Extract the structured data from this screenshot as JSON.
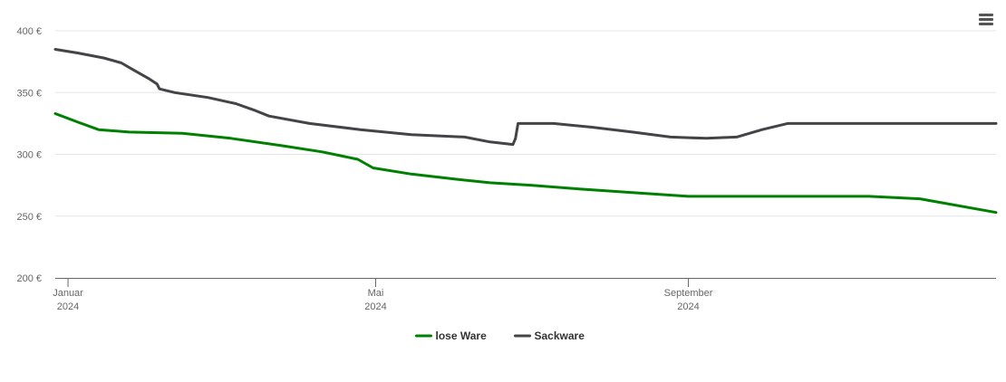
{
  "chart_data": {
    "type": "line",
    "title": "",
    "xlabel": "",
    "ylabel": "",
    "ylim": [
      200,
      400
    ],
    "y_ticks": [
      {
        "value": 400,
        "label": "400 €"
      },
      {
        "value": 350,
        "label": "350 €"
      },
      {
        "value": 300,
        "label": "300 €"
      },
      {
        "value": 250,
        "label": "250 €"
      },
      {
        "value": 200,
        "label": "200 €"
      }
    ],
    "x_range": [
      "2023-12-27",
      "2024-12-31"
    ],
    "x_ticks": [
      {
        "date": "2024-01-01",
        "line1": "Januar",
        "line2": "2024"
      },
      {
        "date": "2024-05-01",
        "line1": "Mai",
        "line2": "2024"
      },
      {
        "date": "2024-09-01",
        "line1": "September",
        "line2": "2024"
      }
    ],
    "grid": true,
    "legend_position": "bottom-center",
    "series": [
      {
        "name": "lose Ware",
        "color": "#008000",
        "points": [
          [
            "2023-12-27",
            333
          ],
          [
            "2024-01-05",
            326
          ],
          [
            "2024-01-13",
            320
          ],
          [
            "2024-01-25",
            318
          ],
          [
            "2024-02-15",
            317
          ],
          [
            "2024-03-05",
            313
          ],
          [
            "2024-03-25",
            307
          ],
          [
            "2024-04-10",
            302
          ],
          [
            "2024-04-24",
            296
          ],
          [
            "2024-04-30",
            289
          ],
          [
            "2024-05-15",
            284
          ],
          [
            "2024-06-01",
            280
          ],
          [
            "2024-06-15",
            277
          ],
          [
            "2024-07-01",
            275
          ],
          [
            "2024-07-20",
            272
          ],
          [
            "2024-08-10",
            269
          ],
          [
            "2024-09-01",
            266
          ],
          [
            "2024-09-20",
            266
          ],
          [
            "2024-10-20",
            266
          ],
          [
            "2024-11-11",
            266
          ],
          [
            "2024-12-01",
            264
          ],
          [
            "2024-12-31",
            253
          ]
        ]
      },
      {
        "name": "Sackware",
        "color": "#434348",
        "points": [
          [
            "2023-12-27",
            385
          ],
          [
            "2024-01-05",
            382
          ],
          [
            "2024-01-15",
            378
          ],
          [
            "2024-01-22",
            374
          ],
          [
            "2024-01-27",
            368
          ],
          [
            "2024-02-02",
            361
          ],
          [
            "2024-02-05",
            357
          ],
          [
            "2024-02-06",
            353
          ],
          [
            "2024-02-12",
            350
          ],
          [
            "2024-02-25",
            346
          ],
          [
            "2024-03-07",
            341
          ],
          [
            "2024-03-14",
            336
          ],
          [
            "2024-03-20",
            331
          ],
          [
            "2024-04-05",
            325
          ],
          [
            "2024-04-25",
            320
          ],
          [
            "2024-05-15",
            316
          ],
          [
            "2024-06-05",
            314
          ],
          [
            "2024-06-15",
            310
          ],
          [
            "2024-06-24",
            308
          ],
          [
            "2024-06-25",
            313
          ],
          [
            "2024-06-26",
            325
          ],
          [
            "2024-07-10",
            325
          ],
          [
            "2024-07-25",
            322
          ],
          [
            "2024-08-10",
            318
          ],
          [
            "2024-08-25",
            314
          ],
          [
            "2024-09-08",
            313
          ],
          [
            "2024-09-20",
            314
          ],
          [
            "2024-09-30",
            320
          ],
          [
            "2024-10-10",
            325
          ],
          [
            "2024-10-20",
            325
          ],
          [
            "2024-12-31",
            325
          ]
        ]
      }
    ]
  },
  "ui": {
    "menu_icon": "hamburger-menu-icon"
  }
}
